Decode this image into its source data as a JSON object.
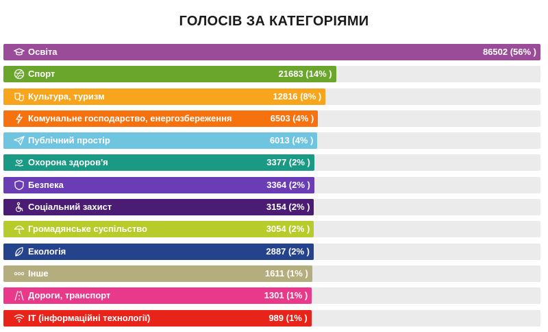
{
  "title": "ГОЛОСІВ ЗА КАТЕГОРІЯМИ",
  "chart_data": {
    "type": "bar",
    "orientation": "horizontal",
    "title": "ГОЛОСІВ ЗА КАТЕГОРІЯМИ",
    "max_value": 86502,
    "categories": [
      {
        "name": "Освіта",
        "value": 86502,
        "label": "86502 (56% )",
        "color": "#9b4c99",
        "icon": "graduation-cap-icon"
      },
      {
        "name": "Спорт",
        "value": 21683,
        "label": "21683 (14% )",
        "color": "#6aa52c",
        "icon": "ball-icon"
      },
      {
        "name": "Культура, туризм",
        "value": 12816,
        "label": "12816 (8% )",
        "color": "#f6a51c",
        "icon": "theater-masks-icon"
      },
      {
        "name": "Комунальне господарство, енергозбереження",
        "value": 6503,
        "label": "6503 (4% )",
        "color": "#f5720e",
        "icon": "lightning-icon"
      },
      {
        "name": "Публічний простір",
        "value": 6013,
        "label": "6013 (4% )",
        "color": "#6fc4e0",
        "icon": "paper-plane-icon"
      },
      {
        "name": "Охорона здоров'я",
        "value": 3377,
        "label": "3377 (2% )",
        "color": "#1a9985",
        "icon": "heart-hand-icon"
      },
      {
        "name": "Безпека",
        "value": 3364,
        "label": "3364 (2% )",
        "color": "#6a3db4",
        "icon": "shield-icon"
      },
      {
        "name": "Соціальний захист",
        "value": 3154,
        "label": "3154 (2% )",
        "color": "#4b1c74",
        "icon": "person-accessible-icon"
      },
      {
        "name": "Громадянське суспільство",
        "value": 3054,
        "label": "3054 (2% )",
        "color": "#b7cc2b",
        "icon": "umbrella-icon"
      },
      {
        "name": "Екологія",
        "value": 2887,
        "label": "2887 (2% )",
        "color": "#25428c",
        "icon": "leaf-icon"
      },
      {
        "name": "Інше",
        "value": 1611,
        "label": "1611 (1% )",
        "color": "#b4ad7d",
        "icon": "dots-icon"
      },
      {
        "name": "Дороги, транспорт",
        "value": 1301,
        "label": "1301 (1% )",
        "color": "#e8398a",
        "icon": "road-icon"
      },
      {
        "name": "ІТ (інформаційні технології)",
        "value": 989,
        "label": "989 (1% )",
        "color": "#e8231a",
        "icon": "wifi-icon"
      }
    ]
  }
}
